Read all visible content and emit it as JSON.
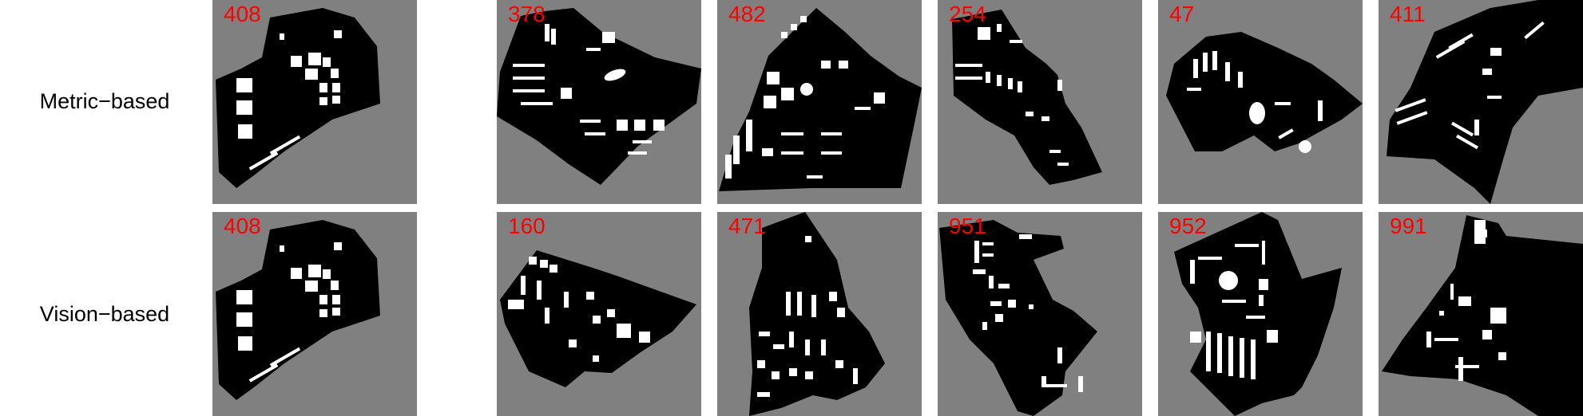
{
  "rows": [
    {
      "label": "Metric−based",
      "ids": [
        "408",
        "378",
        "482",
        "254",
        "47",
        "411"
      ]
    },
    {
      "label": "Vision−based",
      "ids": [
        "408",
        "160",
        "471",
        "951",
        "952",
        "991"
      ]
    }
  ],
  "colors": {
    "background": "#808080",
    "land": "#000000",
    "building": "#ffffff",
    "id_text": "#ff0000"
  }
}
